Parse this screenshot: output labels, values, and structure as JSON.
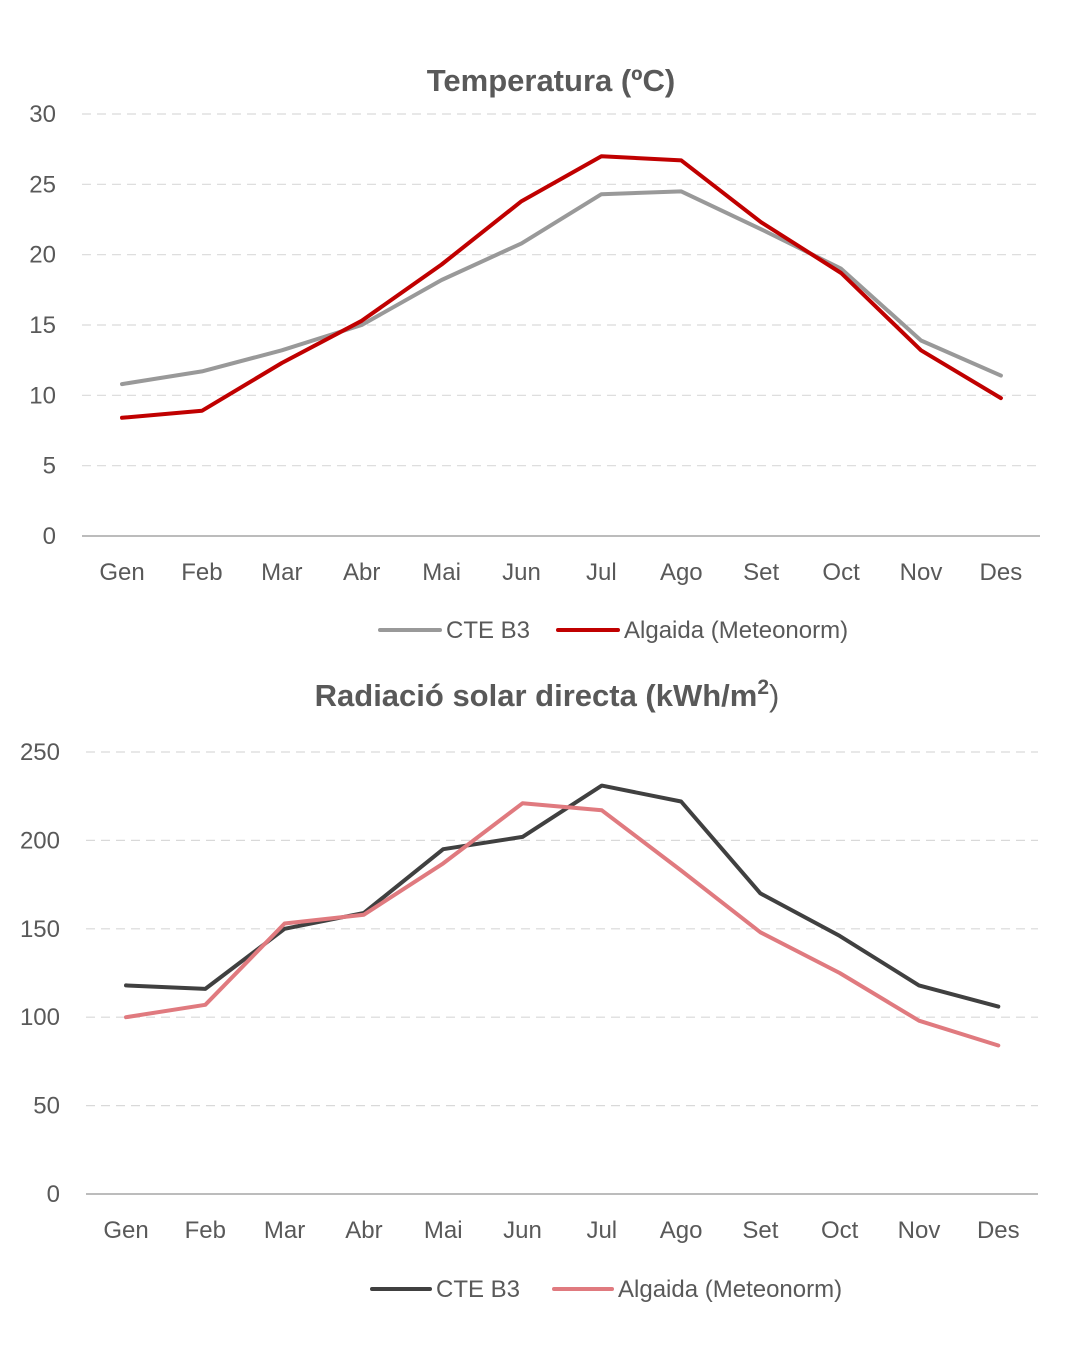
{
  "chart_data": [
    {
      "type": "line",
      "title": "Temperatura (ºC)",
      "categories": [
        "Gen",
        "Feb",
        "Mar",
        "Abr",
        "Mai",
        "Jun",
        "Jul",
        "Ago",
        "Set",
        "Oct",
        "Nov",
        "Des"
      ],
      "ylim": [
        0,
        30
      ],
      "yticks": [
        0,
        5,
        10,
        15,
        20,
        25,
        30
      ],
      "grid": true,
      "legend_position": "bottom",
      "series": [
        {
          "name": "CTE B3",
          "color": "#999999",
          "values": [
            10.8,
            11.7,
            13.2,
            15.0,
            18.2,
            20.8,
            24.3,
            24.5,
            21.8,
            19.0,
            13.9,
            11.4
          ]
        },
        {
          "name": "Algaida (Meteonorm)",
          "color": "#c00000",
          "values": [
            8.4,
            8.9,
            12.3,
            15.3,
            19.3,
            23.8,
            27.0,
            26.7,
            22.3,
            18.7,
            13.2,
            9.8
          ]
        }
      ]
    },
    {
      "type": "line",
      "title": "Radiació solar directa (kWh/m²)",
      "title_main": "Radiació solar directa (kWh/m",
      "title_sup": "2",
      "title_close": ")",
      "categories": [
        "Gen",
        "Feb",
        "Mar",
        "Abr",
        "Mai",
        "Jun",
        "Jul",
        "Ago",
        "Set",
        "Oct",
        "Nov",
        "Des"
      ],
      "ylim": [
        0,
        250
      ],
      "yticks": [
        0,
        50,
        100,
        150,
        200,
        250
      ],
      "grid": true,
      "legend_position": "bottom",
      "series": [
        {
          "name": "CTE B3",
          "color": "#404040",
          "values": [
            118,
            116,
            150,
            159,
            195,
            202,
            231,
            222,
            170,
            146,
            118,
            106
          ]
        },
        {
          "name": "Algaida (Meteonorm)",
          "color": "#e07a7f",
          "values": [
            100,
            107,
            153,
            158,
            187,
            221,
            217,
            183,
            148,
            125,
            98,
            84
          ]
        }
      ]
    }
  ]
}
